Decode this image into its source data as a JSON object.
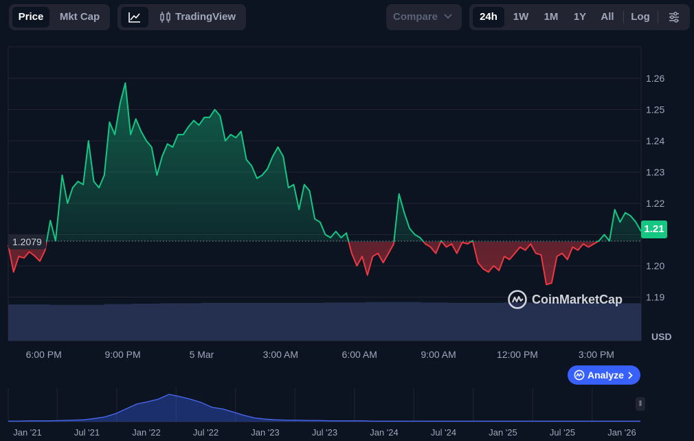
{
  "toolbar": {
    "metric_tabs": [
      {
        "label": "Price",
        "active": true
      },
      {
        "label": "Mkt Cap",
        "active": false
      }
    ],
    "chart_mode": {
      "line_icon": "line-chart-icon",
      "tv_icon": "candlestick-icon",
      "tradingview_label": "TradingView"
    },
    "compare_label": "Compare",
    "ranges": [
      {
        "label": "24h",
        "active": true
      },
      {
        "label": "1W",
        "active": false
      },
      {
        "label": "1M",
        "active": false
      },
      {
        "label": "1Y",
        "active": false
      },
      {
        "label": "All",
        "active": false
      }
    ],
    "log_label": "Log",
    "settings_icon": "sliders-icon"
  },
  "colors": {
    "background": "#0d1421",
    "up": "#16c784",
    "down": "#ea3943",
    "volume": "#2a3457",
    "accent": "#3861fb"
  },
  "reference_price": "1.2079",
  "current_price_badge": "1.21",
  "currency_label": "USD",
  "watermark": "CoinMarketCap",
  "analyze_label": "Analyze",
  "chart_data": [
    {
      "type": "line",
      "name": "price",
      "yticks": [
        "1.26",
        "1.25",
        "1.24",
        "1.23",
        "1.22",
        "1.21",
        "1.20",
        "1.19"
      ],
      "ylim": [
        1.185,
        1.2675
      ],
      "reference": 1.2079,
      "xlim": [
        -1.35,
        22.7
      ],
      "xtick_positions": [
        0,
        3,
        6,
        9,
        12,
        15,
        18,
        21
      ],
      "xticks": [
        "6:00 PM",
        "9:00 PM",
        "5 Mar",
        "3:00 AM",
        "6:00 AM",
        "9:00 AM",
        "12:00 PM",
        "3:00 PM"
      ],
      "x": [
        -1.35,
        -1.15,
        -0.95,
        -0.75,
        -0.55,
        -0.35,
        -0.15,
        0.05,
        0.25,
        0.45,
        0.7,
        0.9,
        1.1,
        1.3,
        1.5,
        1.7,
        1.9,
        2.1,
        2.3,
        2.5,
        2.7,
        2.9,
        3.1,
        3.3,
        3.5,
        3.7,
        3.9,
        4.1,
        4.3,
        4.5,
        4.7,
        4.9,
        5.1,
        5.3,
        5.5,
        5.7,
        5.9,
        6.1,
        6.3,
        6.5,
        6.7,
        6.9,
        7.1,
        7.3,
        7.5,
        7.7,
        7.9,
        8.1,
        8.3,
        8.5,
        8.7,
        8.9,
        9.1,
        9.3,
        9.5,
        9.7,
        9.9,
        10.1,
        10.3,
        10.5,
        10.7,
        10.9,
        11.1,
        11.3,
        11.5,
        11.7,
        11.9,
        12.1,
        12.3,
        12.5,
        12.7,
        12.9,
        13.1,
        13.3,
        13.5,
        13.7,
        13.9,
        14.1,
        14.3,
        14.5,
        14.7,
        14.9,
        15.1,
        15.3,
        15.5,
        15.7,
        15.9,
        16.1,
        16.3,
        16.5,
        16.7,
        16.9,
        17.1,
        17.3,
        17.5,
        17.7,
        17.9,
        18.1,
        18.3,
        18.5,
        18.7,
        18.9,
        19.1,
        19.3,
        19.5,
        19.7,
        19.9,
        20.1,
        20.3,
        20.5,
        20.7,
        20.9,
        21.1,
        21.3,
        21.5,
        21.7,
        21.9,
        22.1,
        22.3,
        22.5,
        22.7
      ],
      "y": [
        1.2067,
        1.198,
        1.203,
        1.2025,
        1.2045,
        1.2032,
        1.2015,
        1.205,
        1.2145,
        1.208,
        1.229,
        1.22,
        1.225,
        1.227,
        1.226,
        1.24,
        1.227,
        1.225,
        1.229,
        1.246,
        1.242,
        1.252,
        1.2585,
        1.242,
        1.247,
        1.243,
        1.24,
        1.238,
        1.229,
        1.235,
        1.239,
        1.238,
        1.242,
        1.242,
        1.2445,
        1.2465,
        1.245,
        1.2475,
        1.2475,
        1.25,
        1.248,
        1.24,
        1.242,
        1.241,
        1.243,
        1.234,
        1.232,
        1.228,
        1.229,
        1.231,
        1.235,
        1.238,
        1.235,
        1.225,
        1.226,
        1.218,
        1.226,
        1.224,
        1.215,
        1.214,
        1.21,
        1.209,
        1.211,
        1.209,
        1.2105,
        1.204,
        1.2,
        1.203,
        1.197,
        1.203,
        1.204,
        1.201,
        1.204,
        1.207,
        1.223,
        1.217,
        1.212,
        1.21,
        1.209,
        1.207,
        1.206,
        1.204,
        1.208,
        1.206,
        1.207,
        1.204,
        1.2075,
        1.207,
        1.208,
        1.201,
        1.199,
        1.198,
        1.2,
        1.1985,
        1.203,
        1.202,
        1.204,
        1.206,
        1.205,
        1.207,
        1.204,
        1.2035,
        1.194,
        1.1945,
        1.203,
        1.204,
        1.202,
        1.206,
        1.205,
        1.207,
        1.206,
        1.207,
        1.208,
        1.21,
        1.208,
        1.218,
        1.214,
        1.217,
        1.216,
        1.214,
        1.211
      ]
    },
    {
      "type": "bar",
      "name": "volume",
      "note_level": "flat, near-constant across the window",
      "values_relative": [
        0.91,
        0.91,
        0.91,
        0.9,
        0.9,
        0.9,
        0.9,
        0.92,
        0.92,
        0.93,
        0.93,
        0.94,
        0.94,
        0.94,
        0.95,
        0.95,
        0.95,
        0.95,
        0.95,
        0.95,
        0.95,
        0.95,
        0.95,
        0.96,
        0.96,
        0.96,
        0.97,
        0.97,
        0.97,
        0.97,
        0.96,
        0.96,
        0.95,
        0.95,
        0.95,
        0.95,
        0.96,
        0.96,
        0.96,
        0.97,
        0.96,
        0.95,
        0.95,
        0.94,
        0.94,
        0.94
      ]
    },
    {
      "type": "area",
      "name": "all-time navigator",
      "xticks": [
        "Jan '21",
        "Jul '21",
        "Jan '22",
        "Jul '22",
        "Jan '23",
        "Jul '23",
        "Jan '24",
        "Jul '24",
        "Jan '25",
        "Jul '25",
        "Jan '26"
      ],
      "values_relative": [
        0.02,
        0.02,
        0.03,
        0.03,
        0.03,
        0.04,
        0.05,
        0.06,
        0.1,
        0.15,
        0.25,
        0.4,
        0.55,
        0.62,
        0.7,
        0.85,
        0.78,
        0.7,
        0.6,
        0.45,
        0.4,
        0.3,
        0.2,
        0.12,
        0.08,
        0.06,
        0.05,
        0.05,
        0.04,
        0.04,
        0.03,
        0.03,
        0.03,
        0.03,
        0.02,
        0.02,
        0.02,
        0.02,
        0.02,
        0.02,
        0.02,
        0.02,
        0.02,
        0.02,
        0.02,
        0.02,
        0.02,
        0.02,
        0.02,
        0.02,
        0.02,
        0.02,
        0.02,
        0.02,
        0.02,
        0.02,
        0.02,
        0.02,
        0.02,
        0.02
      ]
    }
  ]
}
